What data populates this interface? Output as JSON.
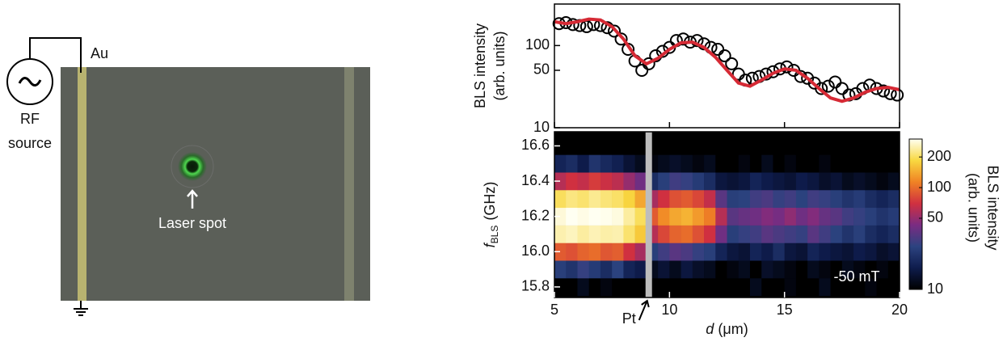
{
  "micrograph": {
    "au": "Au",
    "rf": "RF",
    "source": "source",
    "laser": "Laser spot"
  },
  "chart_data": [
    {
      "type": "scatter",
      "ylabel": [
        "BLS intensity",
        "(arb. units)"
      ],
      "xlim": [
        5,
        20
      ],
      "xticks": [
        5,
        10,
        15,
        20
      ],
      "ylim": [
        10,
        320
      ],
      "yticks": [
        10,
        50,
        100
      ],
      "yscale": "log",
      "series": [
        {
          "style": "markers",
          "color": "#000000",
          "x": [
            5.2,
            5.5,
            5.8,
            6.1,
            6.4,
            6.7,
            7.0,
            7.3,
            7.6,
            7.9,
            8.2,
            8.5,
            8.8,
            9.1,
            9.4,
            9.7,
            10.0,
            10.3,
            10.6,
            10.9,
            11.2,
            11.5,
            11.8,
            12.1,
            12.4,
            12.7,
            13.0,
            13.3,
            13.6,
            13.9,
            14.2,
            14.5,
            14.8,
            15.1,
            15.4,
            15.7,
            16.0,
            16.3,
            16.6,
            16.9,
            17.2,
            17.5,
            17.8,
            18.1,
            18.4,
            18.7,
            19.0,
            19.3,
            19.6,
            19.9
          ],
          "values": [
            185,
            190,
            180,
            175,
            170,
            180,
            175,
            165,
            150,
            120,
            90,
            65,
            50,
            60,
            75,
            85,
            95,
            115,
            120,
            110,
            115,
            105,
            95,
            90,
            75,
            60,
            45,
            38,
            40,
            42,
            45,
            48,
            52,
            55,
            50,
            42,
            40,
            35,
            30,
            32,
            36,
            30,
            25,
            26,
            30,
            33,
            30,
            28,
            26,
            25
          ]
        },
        {
          "style": "line",
          "color": "#d62a35",
          "x": [
            5,
            5.5,
            6,
            6.5,
            7,
            7.5,
            8,
            8.5,
            9,
            9.5,
            10,
            10.5,
            11,
            11.5,
            12,
            12.5,
            13,
            13.5,
            14,
            14.5,
            15,
            15.5,
            16,
            16.5,
            17,
            17.5,
            18,
            18.5,
            19,
            19.5,
            20
          ],
          "values": [
            195,
            185,
            195,
            210,
            205,
            170,
            120,
            75,
            60,
            70,
            90,
            108,
            110,
            95,
            72,
            50,
            35,
            32,
            38,
            46,
            52,
            50,
            40,
            30,
            23,
            21,
            23,
            27,
            30,
            31,
            29
          ]
        }
      ]
    },
    {
      "type": "heatmap",
      "ylabel_main": "f",
      "ylabel_sub": "BLS",
      "ylabel_unit": "(GHz)",
      "xlabel_var": "d",
      "xlabel_unit": "(μm)",
      "xlim": [
        5,
        20
      ],
      "xticks": [
        5,
        10,
        15,
        20
      ],
      "ylim": [
        15.74,
        16.68
      ],
      "yticks": [
        15.8,
        {
          "value": 16,
          "label": "16.0"
        },
        16.2,
        16.4,
        16.6
      ],
      "x": [
        5.25,
        5.75,
        6.25,
        6.75,
        7.25,
        7.75,
        8.25,
        8.75,
        9.25,
        9.75,
        10.25,
        10.75,
        11.25,
        11.75,
        12.25,
        12.75,
        13.25,
        13.75,
        14.25,
        14.75,
        15.25,
        15.75,
        16.25,
        16.75,
        17.25,
        17.75,
        18.25,
        18.75,
        19.25,
        19.75
      ],
      "y": [
        15.8,
        15.9,
        16.0,
        16.1,
        16.2,
        16.3,
        16.4,
        16.5,
        16.6
      ],
      "z": [
        [
          10,
          10,
          12,
          10,
          11,
          10,
          10,
          10,
          10,
          10,
          10,
          10,
          10,
          10,
          10,
          10,
          10,
          12,
          10,
          10,
          11,
          10,
          10,
          12,
          10,
          10,
          10,
          11,
          10,
          10
        ],
        [
          25,
          22,
          28,
          24,
          20,
          26,
          18,
          16,
          12,
          14,
          12,
          15,
          13,
          12,
          10,
          11,
          12,
          10,
          13,
          12,
          11,
          10,
          12,
          11,
          10,
          12,
          11,
          10,
          11,
          10
        ],
        [
          90,
          85,
          95,
          100,
          88,
          92,
          70,
          55,
          25,
          30,
          35,
          32,
          28,
          25,
          18,
          15,
          14,
          18,
          16,
          20,
          15,
          14,
          18,
          16,
          15,
          14,
          16,
          15,
          13,
          14
        ],
        [
          250,
          260,
          240,
          255,
          245,
          250,
          210,
          170,
          60,
          80,
          95,
          100,
          85,
          70,
          40,
          25,
          28,
          30,
          35,
          32,
          30,
          28,
          35,
          30,
          26,
          22,
          25,
          20,
          18,
          20
        ],
        [
          280,
          300,
          290,
          300,
          295,
          285,
          240,
          200,
          90,
          120,
          140,
          150,
          130,
          110,
          60,
          35,
          38,
          40,
          45,
          42,
          48,
          40,
          45,
          38,
          35,
          30,
          28,
          25,
          22,
          24
        ],
        [
          200,
          220,
          210,
          230,
          215,
          205,
          180,
          140,
          55,
          70,
          85,
          90,
          80,
          65,
          35,
          25,
          26,
          30,
          32,
          28,
          30,
          26,
          30,
          28,
          25,
          22,
          24,
          20,
          18,
          20
        ],
        [
          60,
          70,
          65,
          75,
          68,
          62,
          50,
          40,
          20,
          25,
          30,
          28,
          24,
          20,
          15,
          14,
          15,
          18,
          16,
          15,
          14,
          16,
          15,
          13,
          14,
          12,
          13,
          12,
          11,
          12
        ],
        [
          18,
          20,
          16,
          22,
          19,
          17,
          14,
          12,
          11,
          12,
          13,
          12,
          11,
          12,
          10,
          10,
          11,
          10,
          12,
          10,
          11,
          10,
          10,
          11,
          10,
          10,
          10,
          10,
          10,
          10
        ],
        [
          10,
          10,
          10,
          10,
          10,
          10,
          10,
          10,
          10,
          10,
          10,
          10,
          10,
          10,
          10,
          10,
          10,
          10,
          10,
          10,
          10,
          10,
          10,
          10,
          10,
          10,
          10,
          10,
          10,
          10
        ]
      ],
      "zlim": [
        10,
        300
      ],
      "zticks": [
        10,
        50,
        100,
        200
      ],
      "zscale": "log",
      "colormap": [
        "#000000",
        "#0e1c4c",
        "#2c4380",
        "#7a2c82",
        "#d03040",
        "#f08224",
        "#f8d840",
        "#fffff2"
      ],
      "colorbar_label": [
        "BLS intensity",
        "(arb. units)"
      ],
      "field_label": "-50 mT",
      "pt_label": "Pt",
      "pt_x": 9.1
    }
  ]
}
